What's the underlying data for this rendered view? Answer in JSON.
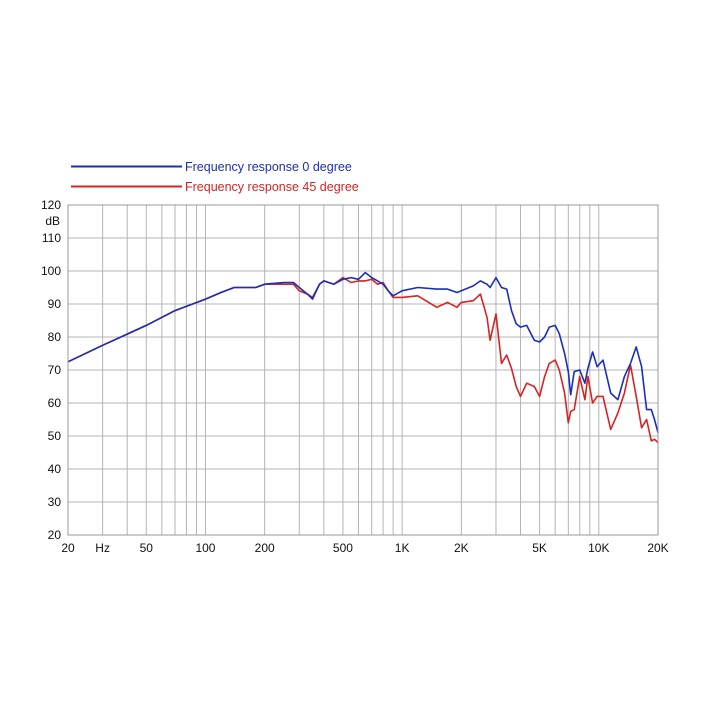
{
  "chart_data": {
    "type": "line",
    "x_scale": "log",
    "y_unit": "dB",
    "xlim": [
      20,
      20000
    ],
    "ylim": [
      20,
      120
    ],
    "grid": true,
    "legend_position": "top-left, above plot",
    "y_ticks": [
      "20",
      "30",
      "40",
      "50",
      "60",
      "70",
      "80",
      "90",
      "100",
      "110",
      "120"
    ],
    "x_tick_labels": [
      {
        "value": 20,
        "label": "20"
      },
      {
        "value": 30,
        "label": "Hz"
      },
      {
        "value": 50,
        "label": "50"
      },
      {
        "value": 100,
        "label": "100"
      },
      {
        "value": 200,
        "label": "200"
      },
      {
        "value": 500,
        "label": "500"
      },
      {
        "value": 1000,
        "label": "1K"
      },
      {
        "value": 2000,
        "label": "2K"
      },
      {
        "value": 5000,
        "label": "5K"
      },
      {
        "value": 10000,
        "label": "10K"
      },
      {
        "value": 20000,
        "label": "20K"
      }
    ],
    "series": [
      {
        "name": "Frequency response 0 degree",
        "color": "#1a2fb8",
        "x": [
          20,
          30,
          50,
          70,
          100,
          120,
          140,
          160,
          180,
          200,
          250,
          280,
          300,
          330,
          350,
          380,
          400,
          450,
          500,
          550,
          600,
          650,
          700,
          750,
          800,
          850,
          900,
          1000,
          1200,
          1500,
          1700,
          1900,
          2000,
          2300,
          2500,
          2700,
          2800,
          3000,
          3200,
          3400,
          3600,
          3800,
          4000,
          4300,
          4700,
          5000,
          5300,
          5600,
          6000,
          6300,
          6700,
          7000,
          7200,
          7500,
          8000,
          8500,
          8800,
          9300,
          9800,
          10500,
          11500,
          12500,
          13500,
          14500,
          15500,
          16500,
          17500,
          18500,
          19200,
          20000
        ],
        "y": [
          72.5,
          77.5,
          83.5,
          88,
          91.5,
          93.5,
          95,
          95,
          95,
          96,
          96.5,
          96.5,
          95,
          93,
          91.5,
          96,
          97,
          96,
          97.5,
          98,
          97.5,
          99.5,
          98,
          97,
          96,
          94,
          92.5,
          94,
          95,
          94.5,
          94.5,
          93.5,
          94,
          95.5,
          97,
          96,
          95,
          98,
          95,
          94.5,
          88,
          84,
          83,
          83.5,
          79,
          78.5,
          80,
          83,
          83.5,
          81,
          75,
          69.5,
          62.5,
          69.5,
          70,
          66,
          70.5,
          75.5,
          71,
          73,
          63,
          61,
          68,
          72,
          77,
          71,
          58,
          58,
          55,
          51
        ]
      },
      {
        "name": "Frequency response 45 degree",
        "color": "#d42424",
        "x": [
          20,
          30,
          50,
          70,
          100,
          120,
          140,
          160,
          180,
          200,
          250,
          280,
          300,
          330,
          350,
          380,
          400,
          450,
          500,
          550,
          600,
          650,
          700,
          750,
          800,
          850,
          900,
          1000,
          1200,
          1500,
          1700,
          1900,
          2000,
          2300,
          2500,
          2700,
          2800,
          3000,
          3200,
          3400,
          3600,
          3800,
          4000,
          4300,
          4700,
          5000,
          5300,
          5600,
          6000,
          6300,
          6700,
          7000,
          7200,
          7500,
          8000,
          8500,
          8800,
          9300,
          9800,
          10500,
          11500,
          12500,
          13500,
          14500,
          15500,
          16500,
          17500,
          18500,
          19200,
          20000
        ],
        "y": [
          72.5,
          77.5,
          83.5,
          88,
          91.5,
          93.5,
          95,
          95,
          95,
          96,
          96,
          96,
          94,
          93,
          92,
          96,
          97,
          96,
          98,
          96.5,
          97,
          97,
          97.5,
          96,
          96.5,
          94,
          92,
          92,
          92.5,
          89,
          90.5,
          89,
          90.5,
          91,
          93,
          86,
          79,
          87,
          72,
          74.5,
          70.5,
          65,
          62,
          66,
          65,
          62,
          68,
          72,
          73,
          70,
          63,
          54,
          57.5,
          58,
          68,
          61,
          68,
          60,
          62,
          62,
          52,
          57,
          63,
          71.5,
          62,
          52.5,
          55,
          48.5,
          49,
          48
        ]
      }
    ]
  }
}
